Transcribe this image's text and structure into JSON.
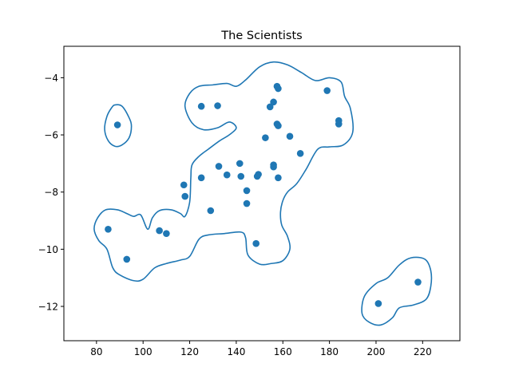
{
  "chart_data": {
    "type": "scatter",
    "title": "The Scientists",
    "xlabel": "",
    "ylabel": "",
    "xlim": [
      66,
      236
    ],
    "ylim": [
      -13.2,
      -2.9
    ],
    "x_ticks": [
      80,
      100,
      120,
      140,
      160,
      180,
      200,
      220
    ],
    "y_ticks": [
      -12,
      -10,
      -8,
      -6,
      -4
    ],
    "x_tick_labels": [
      "80",
      "100",
      "120",
      "140",
      "160",
      "180",
      "200",
      "220"
    ],
    "y_tick_labels": [
      "−12",
      "−10",
      "−8",
      "−6",
      "−4"
    ],
    "grid": false,
    "colors": {
      "points": "#1f77b4",
      "contour": "#1f77b4"
    },
    "points": [
      {
        "x": 89,
        "y": -5.65
      },
      {
        "x": 85,
        "y": -9.3
      },
      {
        "x": 93,
        "y": -10.35
      },
      {
        "x": 107,
        "y": -9.35
      },
      {
        "x": 110,
        "y": -9.45
      },
      {
        "x": 117.5,
        "y": -7.75
      },
      {
        "x": 118,
        "y": -8.15
      },
      {
        "x": 125,
        "y": -5.0
      },
      {
        "x": 132,
        "y": -4.98
      },
      {
        "x": 125,
        "y": -7.5
      },
      {
        "x": 129,
        "y": -8.65
      },
      {
        "x": 132.5,
        "y": -7.1
      },
      {
        "x": 136,
        "y": -7.4
      },
      {
        "x": 141.5,
        "y": -7.0
      },
      {
        "x": 142,
        "y": -7.45
      },
      {
        "x": 144.5,
        "y": -7.95
      },
      {
        "x": 144.5,
        "y": -8.4
      },
      {
        "x": 148.5,
        "y": -9.8
      },
      {
        "x": 149,
        "y": -7.45
      },
      {
        "x": 149.5,
        "y": -7.38
      },
      {
        "x": 152.5,
        "y": -6.1
      },
      {
        "x": 154.5,
        "y": -5.02
      },
      {
        "x": 156,
        "y": -4.85
      },
      {
        "x": 156,
        "y": -7.05
      },
      {
        "x": 156,
        "y": -7.12
      },
      {
        "x": 157.5,
        "y": -4.3
      },
      {
        "x": 158,
        "y": -4.38
      },
      {
        "x": 157.5,
        "y": -5.62
      },
      {
        "x": 158,
        "y": -5.68
      },
      {
        "x": 158,
        "y": -7.5
      },
      {
        "x": 163,
        "y": -6.05
      },
      {
        "x": 167.5,
        "y": -6.65
      },
      {
        "x": 179,
        "y": -4.45
      },
      {
        "x": 184,
        "y": -5.5
      },
      {
        "x": 184,
        "y": -5.62
      },
      {
        "x": 201,
        "y": -11.9
      },
      {
        "x": 218,
        "y": -11.15
      }
    ],
    "contours": [
      [
        [
          102,
          -9.3
        ],
        [
          104,
          -8.9
        ],
        [
          107,
          -8.65
        ],
        [
          112,
          -8.62
        ],
        [
          116,
          -8.75
        ],
        [
          118,
          -8.85
        ],
        [
          120,
          -8.35
        ],
        [
          120.5,
          -7.5
        ],
        [
          121,
          -7.05
        ],
        [
          124,
          -6.75
        ],
        [
          128,
          -6.5
        ],
        [
          133,
          -6.2
        ],
        [
          137,
          -6.0
        ],
        [
          140,
          -5.75
        ],
        [
          137,
          -5.55
        ],
        [
          132,
          -5.75
        ],
        [
          126,
          -5.82
        ],
        [
          121,
          -5.58
        ],
        [
          118,
          -5.0
        ],
        [
          120,
          -4.55
        ],
        [
          124,
          -4.3
        ],
        [
          130,
          -4.25
        ],
        [
          136,
          -4.2
        ],
        [
          140,
          -4.3
        ],
        [
          144,
          -4.08
        ],
        [
          150,
          -3.62
        ],
        [
          156,
          -3.45
        ],
        [
          162,
          -3.55
        ],
        [
          168,
          -3.82
        ],
        [
          174,
          -4.1
        ],
        [
          180,
          -4.0
        ],
        [
          185,
          -4.15
        ],
        [
          186.5,
          -4.65
        ],
        [
          189,
          -5.08
        ],
        [
          190,
          -5.9
        ],
        [
          186,
          -6.35
        ],
        [
          180,
          -6.42
        ],
        [
          175,
          -6.5
        ],
        [
          170,
          -7.2
        ],
        [
          166,
          -7.7
        ],
        [
          162,
          -8.0
        ],
        [
          160,
          -8.3
        ],
        [
          159,
          -8.7
        ],
        [
          159.5,
          -9.15
        ],
        [
          162,
          -9.55
        ],
        [
          163,
          -10.0
        ],
        [
          160,
          -10.4
        ],
        [
          155,
          -10.5
        ],
        [
          150,
          -10.52
        ],
        [
          145,
          -10.2
        ],
        [
          144,
          -9.6
        ],
        [
          142,
          -9.4
        ],
        [
          135,
          -9.45
        ],
        [
          128,
          -9.5
        ],
        [
          124,
          -9.65
        ],
        [
          120,
          -10.25
        ],
        [
          116,
          -10.38
        ],
        [
          110,
          -10.5
        ],
        [
          105,
          -10.65
        ],
        [
          100,
          -11.05
        ],
        [
          96,
          -11.1
        ],
        [
          90,
          -10.9
        ],
        [
          87,
          -10.65
        ],
        [
          84.5,
          -10.0
        ],
        [
          81,
          -9.7
        ],
        [
          79,
          -9.3
        ],
        [
          80.5,
          -8.9
        ],
        [
          84,
          -8.62
        ],
        [
          89,
          -8.62
        ],
        [
          93,
          -8.75
        ],
        [
          96,
          -8.85
        ],
        [
          99,
          -8.8
        ],
        [
          102,
          -9.3
        ]
      ],
      [
        [
          88,
          -4.95
        ],
        [
          91,
          -5.0
        ],
        [
          94,
          -5.4
        ],
        [
          95,
          -5.7
        ],
        [
          94,
          -6.1
        ],
        [
          91,
          -6.35
        ],
        [
          88,
          -6.4
        ],
        [
          85,
          -6.2
        ],
        [
          83.5,
          -5.8
        ],
        [
          84.5,
          -5.35
        ],
        [
          86.5,
          -5.05
        ],
        [
          88,
          -4.95
        ]
      ],
      [
        [
          195,
          -11.65
        ],
        [
          200,
          -11.2
        ],
        [
          205,
          -11.0
        ],
        [
          210,
          -10.55
        ],
        [
          215,
          -10.3
        ],
        [
          221,
          -10.35
        ],
        [
          223.5,
          -10.75
        ],
        [
          223.5,
          -11.3
        ],
        [
          221.5,
          -11.75
        ],
        [
          216,
          -11.95
        ],
        [
          210,
          -12.05
        ],
        [
          207,
          -12.4
        ],
        [
          202,
          -12.65
        ],
        [
          197,
          -12.55
        ],
        [
          194,
          -12.25
        ],
        [
          195,
          -11.65
        ]
      ]
    ]
  }
}
